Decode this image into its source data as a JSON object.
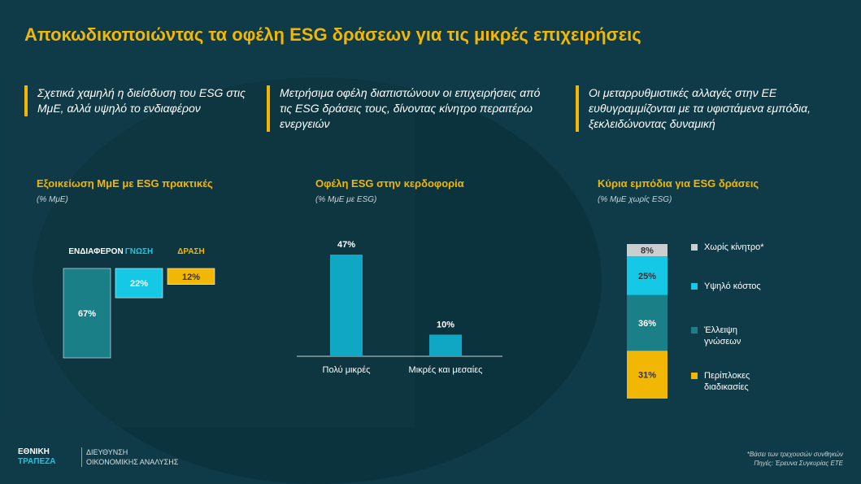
{
  "title": "Αποκωδικοποιώντας τα οφέλη ESG δράσεων για τις μικρές επιχειρήσεις",
  "columns": [
    {
      "headline": "Σχετικά χαμηλή η διείσδυση του ESG στις ΜμΕ, αλλά υψηλό το ενδιαφέρον",
      "subtitle": "Εξοικείωση ΜμΕ με ESG πρακτικές",
      "unit": "(% ΜμΕ)"
    },
    {
      "headline": "Μετρήσιμα οφέλη διαπιστώνουν οι επιχειρήσεις από τις ESG δράσεις τους, δίνοντας κίνητρο περαιτέρω ενεργειών",
      "subtitle": "Οφέλη ESG στην κερδοφορία",
      "unit": "(% ΜμΕ με ESG)"
    },
    {
      "headline": "Οι μεταρρυθμιστικές αλλαγές στην ΕΕ ευθυγραμμίζονται με τα υφιστάμενα εμπόδια, ξεκλειδώνοντας δυναμική",
      "subtitle": "Κύρια εμπόδια για ESG δράσεις",
      "unit": "(% ΜμΕ χωρίς ESG)"
    }
  ],
  "colors": {
    "teal": "#1a7f86",
    "cyan": "#14c8e6",
    "yellow": "#f2b705",
    "grey": "#c9cfd1",
    "bluebar": "#0fa7c4"
  },
  "chart_data": [
    {
      "type": "bar",
      "title": "Εξοικείωση ΜμΕ με ESG πρακτικές",
      "categories": [
        "ΕΝΔΙΑΦΕΡΟΝ",
        "ΓΝΩΣΗ",
        "ΔΡΑΣΗ"
      ],
      "values": [
        67,
        22,
        12
      ],
      "labels": [
        "67%",
        "22%",
        "12%"
      ]
    },
    {
      "type": "bar",
      "title": "Οφέλη ESG στην κερδοφορία",
      "categories": [
        "Πολύ μικρές",
        "Μικρές και μεσαίες"
      ],
      "values": [
        47,
        10
      ],
      "labels": [
        "47%",
        "10%"
      ]
    },
    {
      "type": "bar",
      "title": "Κύρια εμπόδια για ESG δράσεις",
      "stacked": true,
      "series": [
        {
          "name": "Περίπλοκες διαδικασίες",
          "value": 31,
          "label": "31%"
        },
        {
          "name": "Έλλειψη γνώσεων",
          "value": 36,
          "label": "36%"
        },
        {
          "name": "Υψηλό κόστος",
          "value": 25,
          "label": "25%"
        },
        {
          "name": "Χωρίς κίνητρο*",
          "value": 8,
          "label": "8%"
        }
      ]
    }
  ],
  "footer": {
    "logo_line1": "ΕΘΝΙΚΗ",
    "logo_line2": "ΤΡΑΠΕΖΑ",
    "div_line1": "ΔΙΕΥΘΥΝΣΗ",
    "div_line2": "ΟΙΚΟΝΟΜΙΚΗΣ ΑΝΑΛΥΣΗΣ",
    "note1": "*Βάσει των τρεχουσών συνθηκών",
    "note2": "Πηγές: Έρευνα Συγκυρίας ΕΤΕ"
  }
}
